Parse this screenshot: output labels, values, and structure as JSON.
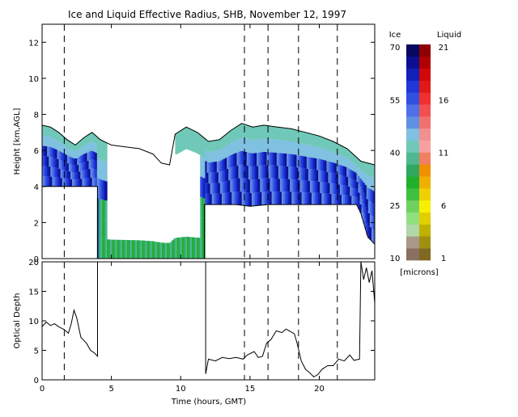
{
  "chart_data": [
    {
      "type": "heatmap",
      "title": "Ice and Liquid Effective Radius, SHB, November 12, 1997",
      "ylabel": "Height [km,AGL]",
      "xlim": [
        0,
        24
      ],
      "ylim": [
        0,
        13
      ],
      "x_ticks": [
        0,
        5,
        10,
        15,
        20
      ],
      "y_ticks": [
        0,
        2,
        4,
        6,
        8,
        10,
        12
      ],
      "dashed_lines_x": [
        1.6,
        14.6,
        16.3,
        18.5,
        21.3
      ],
      "cloud_top_km": [
        [
          0.0,
          7.4
        ],
        [
          0.6,
          7.3
        ],
        [
          1.2,
          7.0
        ],
        [
          1.8,
          6.6
        ],
        [
          2.4,
          6.3
        ],
        [
          3.0,
          6.7
        ],
        [
          3.6,
          7.0
        ],
        [
          4.2,
          6.6
        ],
        [
          5.0,
          6.3
        ],
        [
          6.0,
          6.2
        ],
        [
          7.0,
          6.1
        ],
        [
          8.0,
          5.8
        ],
        [
          8.6,
          5.3
        ],
        [
          9.2,
          5.2
        ],
        [
          9.6,
          6.9
        ],
        [
          10.4,
          7.3
        ],
        [
          11.2,
          7.0
        ],
        [
          12.0,
          6.5
        ],
        [
          12.8,
          6.6
        ],
        [
          13.6,
          7.1
        ],
        [
          14.4,
          7.5
        ],
        [
          15.2,
          7.3
        ],
        [
          16.0,
          7.4
        ],
        [
          17.0,
          7.3
        ],
        [
          18.0,
          7.2
        ],
        [
          19.0,
          7.0
        ],
        [
          20.0,
          6.8
        ],
        [
          21.0,
          6.5
        ],
        [
          22.0,
          6.1
        ],
        [
          23.0,
          5.4
        ],
        [
          24.0,
          5.2
        ]
      ],
      "cloud_base_km": [
        [
          0.0,
          4.0
        ],
        [
          4.0,
          4.0
        ],
        [
          4.0,
          0.0
        ],
        [
          6.5,
          0.0
        ],
        [
          8.5,
          0.0
        ],
        [
          11.7,
          0.0
        ],
        [
          11.7,
          3.0
        ],
        [
          14.0,
          3.0
        ],
        [
          15.0,
          2.9
        ],
        [
          16.3,
          3.0
        ],
        [
          18.0,
          3.0
        ],
        [
          20.0,
          3.0
        ],
        [
          22.7,
          3.0
        ],
        [
          23.0,
          2.5
        ],
        [
          23.5,
          1.2
        ],
        [
          24.0,
          0.8
        ]
      ],
      "clear_hole_x": [
        4.6,
        11.3
      ],
      "clear_hole_top_km": 5.6,
      "clear_hole_base_km": 1.4,
      "colorbar": {
        "ice_label": "Ice",
        "liquid_label": "Liquid",
        "unit_label": "[microns]",
        "ice_ticks": [
          10,
          25,
          40,
          55,
          70
        ],
        "liquid_ticks": [
          1,
          6,
          11,
          16,
          21
        ],
        "ice_colors": [
          "#8a7060",
          "#a89888",
          "#b0d8a8",
          "#90e080",
          "#70d060",
          "#40c040",
          "#20b030",
          "#30a860",
          "#50b890",
          "#70c8b8",
          "#80c0e0",
          "#6090e0",
          "#5070e8",
          "#3050e0",
          "#2038d8",
          "#1020b8",
          "#0c1090",
          "#080860"
        ],
        "liquid_colors": [
          "#806820",
          "#a09010",
          "#c0b000",
          "#e0d000",
          "#f8f000",
          "#f0d000",
          "#f0b000",
          "#f09000",
          "#f08060",
          "#f8a0a0",
          "#f09090",
          "#f07070",
          "#f05050",
          "#f03030",
          "#e01818",
          "#d00808",
          "#b00000",
          "#900000"
        ]
      }
    },
    {
      "type": "line",
      "xlabel": "Time (hours, GMT)",
      "ylabel": "Optical Depth",
      "xlim": [
        0,
        24
      ],
      "ylim": [
        0,
        20
      ],
      "x_ticks": [
        0,
        5,
        10,
        15,
        20
      ],
      "y_ticks": [
        0,
        5,
        10,
        15,
        20
      ],
      "dashed_lines_x": [
        1.6,
        14.6,
        16.3,
        18.5,
        21.3
      ],
      "series": [
        {
          "segments": [
            [
              [
                0.0,
                9.0
              ],
              [
                0.3,
                9.8
              ],
              [
                0.6,
                9.2
              ],
              [
                0.9,
                9.5
              ],
              [
                1.2,
                9.0
              ],
              [
                1.6,
                8.5
              ],
              [
                1.9,
                7.9
              ],
              [
                2.1,
                9.5
              ],
              [
                2.3,
                11.8
              ],
              [
                2.5,
                10.5
              ],
              [
                2.8,
                7.2
              ],
              [
                3.2,
                6.2
              ],
              [
                3.5,
                5.0
              ],
              [
                3.8,
                4.5
              ],
              [
                4.0,
                4.0
              ],
              [
                4.0,
                20.0
              ]
            ],
            [
              [
                11.8,
                20.0
              ],
              [
                11.8,
                1.0
              ],
              [
                12.0,
                3.5
              ],
              [
                12.5,
                3.2
              ],
              [
                13.0,
                3.8
              ],
              [
                13.5,
                3.6
              ],
              [
                14.0,
                3.8
              ],
              [
                14.5,
                3.5
              ],
              [
                14.8,
                4.2
              ],
              [
                15.3,
                4.8
              ],
              [
                15.6,
                3.8
              ],
              [
                15.9,
                4.0
              ],
              [
                16.2,
                6.2
              ],
              [
                16.5,
                6.8
              ],
              [
                16.9,
                8.3
              ],
              [
                17.3,
                8.0
              ],
              [
                17.6,
                8.6
              ],
              [
                17.9,
                8.2
              ],
              [
                18.2,
                7.8
              ],
              [
                18.4,
                6.2
              ],
              [
                18.7,
                3.2
              ],
              [
                19.0,
                1.8
              ],
              [
                19.3,
                1.2
              ],
              [
                19.6,
                0.5
              ],
              [
                19.9,
                0.9
              ],
              [
                20.2,
                1.8
              ],
              [
                20.6,
                2.4
              ],
              [
                21.0,
                2.4
              ],
              [
                21.4,
                3.5
              ],
              [
                21.8,
                3.2
              ],
              [
                22.2,
                4.2
              ],
              [
                22.5,
                3.3
              ],
              [
                22.9,
                3.5
              ],
              [
                23.0,
                20.0
              ]
            ],
            [
              [
                23.0,
                20.0
              ],
              [
                23.2,
                17.0
              ],
              [
                23.4,
                19.0
              ],
              [
                23.6,
                16.5
              ],
              [
                23.8,
                18.5
              ],
              [
                24.0,
                13.0
              ]
            ]
          ]
        }
      ]
    }
  ]
}
